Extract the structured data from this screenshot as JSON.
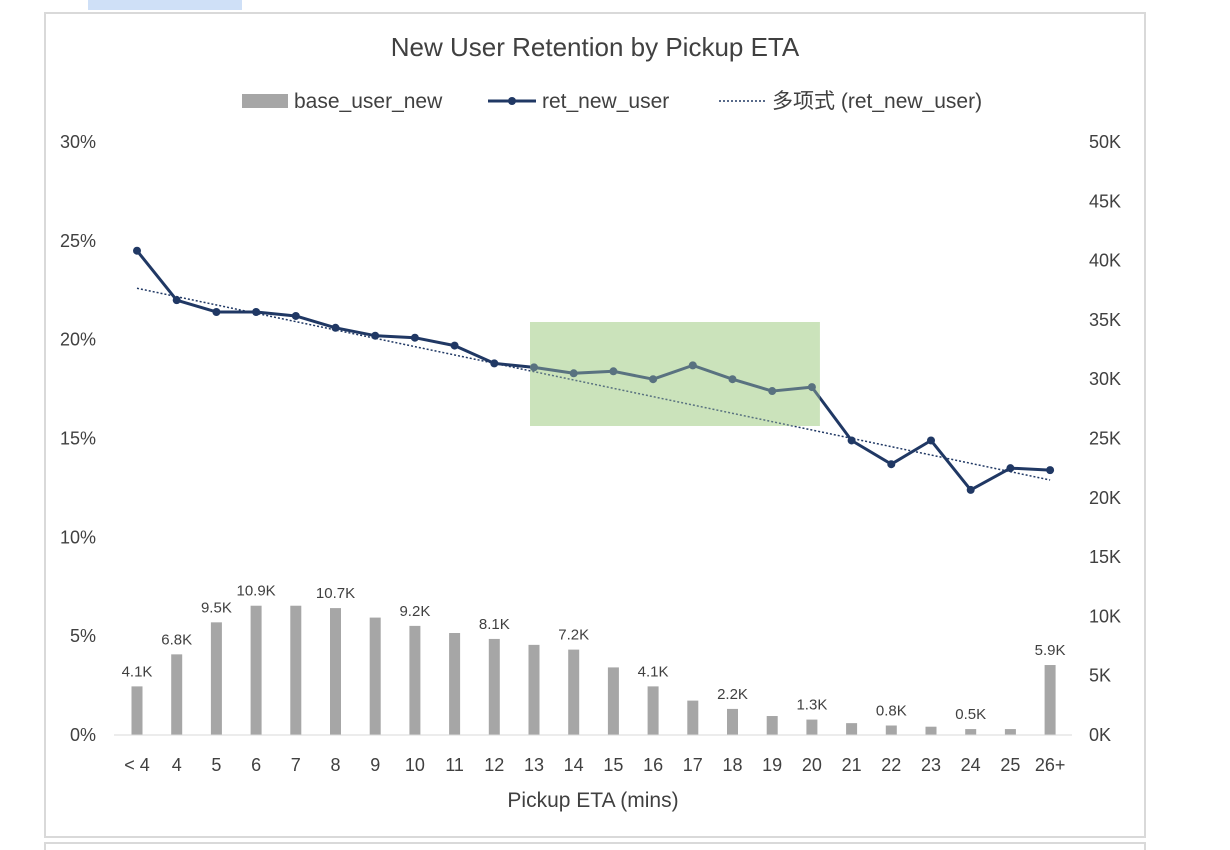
{
  "chart_data": {
    "type": "bar+line",
    "title": "New User Retention by Pickup ETA",
    "xlabel": "Pickup ETA (mins)",
    "categories": [
      "< 4",
      "4",
      "5",
      "6",
      "7",
      "8",
      "9",
      "10",
      "11",
      "12",
      "13",
      "14",
      "15",
      "16",
      "17",
      "18",
      "19",
      "20",
      "21",
      "22",
      "23",
      "24",
      "25",
      "26+"
    ],
    "y_left": {
      "ticks": [
        "0%",
        "5%",
        "10%",
        "15%",
        "20%",
        "25%",
        "30%"
      ],
      "range": [
        0,
        30
      ]
    },
    "y_right": {
      "ticks": [
        "0K",
        "5K",
        "10K",
        "15K",
        "20K",
        "25K",
        "30K",
        "35K",
        "40K",
        "45K",
        "50K"
      ],
      "range": [
        0,
        50
      ]
    },
    "series": [
      {
        "name": "base_user_new",
        "kind": "bar",
        "axis": "right",
        "color": "#a6a6a6",
        "values": [
          4.1,
          6.8,
          9.5,
          10.9,
          10.9,
          10.7,
          9.9,
          9.2,
          8.6,
          8.1,
          7.6,
          7.2,
          5.7,
          4.1,
          2.9,
          2.2,
          1.6,
          1.3,
          1.0,
          0.8,
          0.7,
          0.5,
          0.5,
          5.9
        ],
        "data_labels": [
          "4.1K",
          "6.8K",
          "9.5K",
          "10.9K",
          "",
          "10.7K",
          "",
          "9.2K",
          "",
          "8.1K",
          "",
          "7.2K",
          "",
          "4.1K",
          "",
          "2.2K",
          "",
          "1.3K",
          "",
          "0.8K",
          "",
          "0.5K",
          "",
          "5.9K"
        ]
      },
      {
        "name": "ret_new_user",
        "kind": "line",
        "axis": "left",
        "color": "#203864",
        "values": [
          24.5,
          22.0,
          21.4,
          21.4,
          21.2,
          20.6,
          20.2,
          20.1,
          19.7,
          18.8,
          18.6,
          18.3,
          18.4,
          18.0,
          18.7,
          18.0,
          17.4,
          17.6,
          14.9,
          13.7,
          14.9,
          12.4,
          13.5,
          13.4
        ]
      },
      {
        "name": "多项式 (ret_new_user)",
        "kind": "trendline",
        "axis": "left",
        "color": "#203864",
        "start": 22.6,
        "end": 12.9
      }
    ],
    "highlight": {
      "from": "13",
      "to": "20",
      "color": "#c5e0b4"
    },
    "legend_position": "top",
    "grid": false
  }
}
